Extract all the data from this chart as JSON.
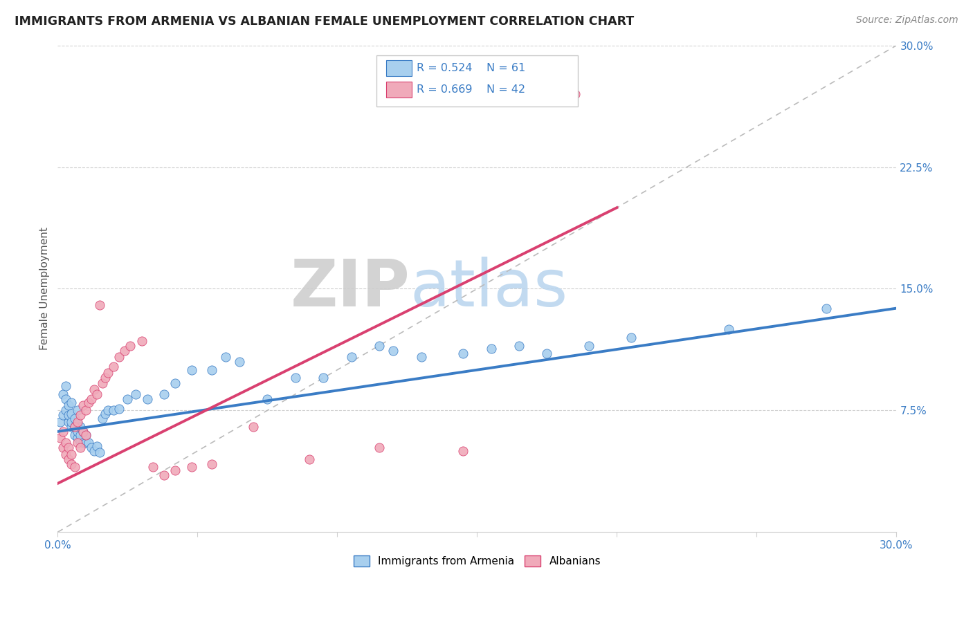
{
  "title": "IMMIGRANTS FROM ARMENIA VS ALBANIAN FEMALE UNEMPLOYMENT CORRELATION CHART",
  "source": "Source: ZipAtlas.com",
  "ylabel": "Female Unemployment",
  "xlim": [
    0.0,
    0.3
  ],
  "ylim": [
    0.0,
    0.3
  ],
  "x_ticks": [
    0.0,
    0.05,
    0.1,
    0.15,
    0.2,
    0.25,
    0.3
  ],
  "y_ticks_right": [
    0.075,
    0.15,
    0.225,
    0.3
  ],
  "y_tick_labels_right": [
    "7.5%",
    "15.0%",
    "22.5%",
    "30.0%"
  ],
  "armenia_color": "#A8CFEE",
  "albanian_color": "#F0AABA",
  "armenia_line_color": "#3A7CC5",
  "albanian_line_color": "#D94070",
  "diagonal_color": "#BBBBBB",
  "legend_r_armenia": "0.524",
  "legend_n_armenia": "61",
  "legend_r_albanian": "0.669",
  "legend_n_albanian": "42",
  "armenia_scatter_x": [
    0.001,
    0.002,
    0.002,
    0.003,
    0.003,
    0.003,
    0.004,
    0.004,
    0.004,
    0.005,
    0.005,
    0.005,
    0.005,
    0.006,
    0.006,
    0.006,
    0.007,
    0.007,
    0.007,
    0.007,
    0.008,
    0.008,
    0.008,
    0.009,
    0.009,
    0.01,
    0.01,
    0.011,
    0.012,
    0.013,
    0.014,
    0.015,
    0.016,
    0.017,
    0.018,
    0.02,
    0.022,
    0.025,
    0.028,
    0.032,
    0.038,
    0.042,
    0.048,
    0.055,
    0.06,
    0.065,
    0.075,
    0.085,
    0.095,
    0.105,
    0.115,
    0.12,
    0.13,
    0.145,
    0.155,
    0.165,
    0.175,
    0.19,
    0.205,
    0.24,
    0.275
  ],
  "armenia_scatter_y": [
    0.068,
    0.085,
    0.072,
    0.09,
    0.075,
    0.082,
    0.068,
    0.072,
    0.078,
    0.065,
    0.068,
    0.073,
    0.08,
    0.06,
    0.065,
    0.07,
    0.058,
    0.062,
    0.067,
    0.075,
    0.056,
    0.06,
    0.065,
    0.055,
    0.062,
    0.055,
    0.06,
    0.055,
    0.052,
    0.05,
    0.053,
    0.049,
    0.07,
    0.073,
    0.075,
    0.075,
    0.076,
    0.082,
    0.085,
    0.082,
    0.085,
    0.092,
    0.1,
    0.1,
    0.108,
    0.105,
    0.082,
    0.095,
    0.095,
    0.108,
    0.115,
    0.112,
    0.108,
    0.11,
    0.113,
    0.115,
    0.11,
    0.115,
    0.12,
    0.125,
    0.138
  ],
  "albanian_scatter_x": [
    0.001,
    0.002,
    0.002,
    0.003,
    0.003,
    0.004,
    0.004,
    0.005,
    0.005,
    0.006,
    0.006,
    0.007,
    0.007,
    0.008,
    0.008,
    0.009,
    0.009,
    0.01,
    0.01,
    0.011,
    0.012,
    0.013,
    0.014,
    0.015,
    0.016,
    0.017,
    0.018,
    0.02,
    0.022,
    0.024,
    0.026,
    0.03,
    0.034,
    0.038,
    0.042,
    0.048,
    0.055,
    0.07,
    0.09,
    0.115,
    0.145,
    0.185
  ],
  "albanian_scatter_y": [
    0.058,
    0.052,
    0.062,
    0.048,
    0.055,
    0.045,
    0.052,
    0.042,
    0.048,
    0.04,
    0.065,
    0.055,
    0.068,
    0.052,
    0.072,
    0.062,
    0.078,
    0.06,
    0.075,
    0.08,
    0.082,
    0.088,
    0.085,
    0.14,
    0.092,
    0.095,
    0.098,
    0.102,
    0.108,
    0.112,
    0.115,
    0.118,
    0.04,
    0.035,
    0.038,
    0.04,
    0.042,
    0.065,
    0.045,
    0.052,
    0.05,
    0.27
  ],
  "armenia_line_x0": 0.0,
  "armenia_line_y0": 0.062,
  "armenia_line_x1": 0.3,
  "armenia_line_y1": 0.138,
  "albanian_line_x0": 0.0,
  "albanian_line_y0": 0.03,
  "albanian_line_x1": 0.2,
  "albanian_line_y1": 0.2
}
